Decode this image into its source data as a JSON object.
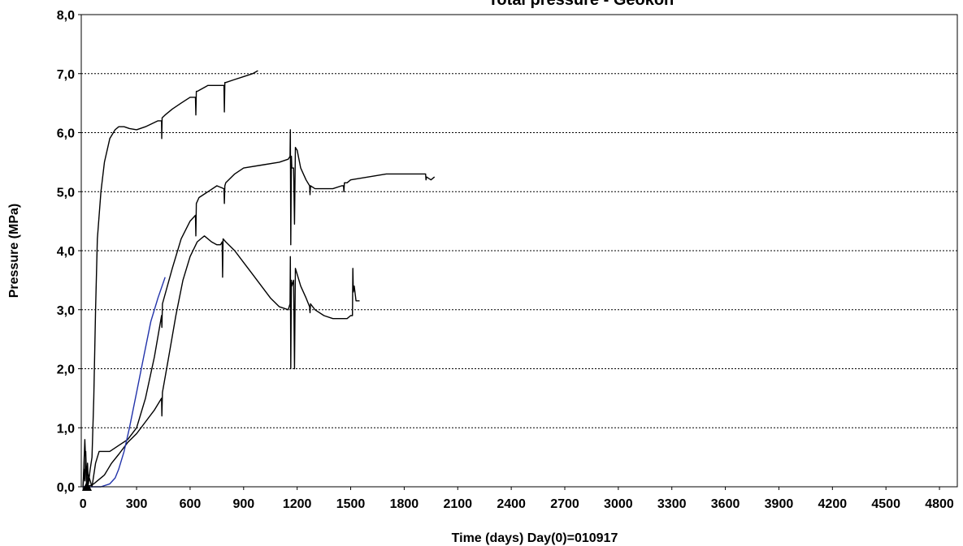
{
  "chart_data": {
    "type": "line",
    "title": "Total pressure - Geokon",
    "xlabel": "Time  (days)  Day(0)=010917",
    "ylabel": "Pressure (MPa)",
    "xlim": [
      -10,
      4900
    ],
    "ylim": [
      0,
      8
    ],
    "xticks": [
      0,
      300,
      600,
      900,
      1200,
      1500,
      1800,
      2100,
      2400,
      2700,
      3000,
      3300,
      3600,
      3900,
      4200,
      4500,
      4800
    ],
    "yticks": [
      0,
      1,
      2,
      3,
      4,
      5,
      6,
      7,
      8
    ],
    "ytick_labels": [
      "0,0",
      "1,0",
      "2,0",
      "3,0",
      "4,0",
      "5,0",
      "6,0",
      "7,0",
      "8,0"
    ],
    "grid": "horizontal dashed",
    "colors": {
      "axis": "#000000",
      "grid": "#000000",
      "series_black": "#000000",
      "series_blue": "#2233aa"
    },
    "series": [
      {
        "color": "#000000",
        "x": [
          0,
          5,
          10,
          15,
          20,
          25,
          30,
          40,
          50,
          60,
          70,
          80,
          100,
          120,
          150,
          180,
          200,
          230,
          260,
          300,
          350,
          420,
          440,
          441,
          443,
          460,
          500,
          550,
          600,
          630,
          632,
          635,
          640,
          700,
          750,
          790,
          792,
          795,
          800,
          850,
          900,
          950,
          980
        ],
        "y": [
          0.0,
          0.3,
          0.1,
          0.6,
          0.1,
          0.4,
          0.05,
          0.3,
          0.5,
          1.5,
          3.0,
          4.2,
          5.0,
          5.5,
          5.9,
          6.05,
          6.1,
          6.1,
          6.07,
          6.05,
          6.1,
          6.2,
          6.2,
          5.9,
          6.25,
          6.3,
          6.4,
          6.5,
          6.6,
          6.6,
          6.3,
          6.7,
          6.7,
          6.8,
          6.8,
          6.8,
          6.35,
          6.85,
          6.85,
          6.9,
          6.95,
          7.0,
          7.05
        ]
      },
      {
        "color": "#000000",
        "x": [
          0,
          10,
          20,
          30,
          50,
          60,
          70,
          80,
          90,
          100,
          120,
          150,
          200,
          250,
          300,
          350,
          400,
          440,
          442,
          445,
          500,
          550,
          600,
          630,
          632,
          635,
          650,
          700,
          750,
          790,
          792,
          795,
          800,
          850,
          900,
          1000,
          1100,
          1150,
          1160,
          1162,
          1164,
          1168,
          1170,
          1180,
          1185,
          1190,
          1200,
          1220,
          1250,
          1270,
          1272,
          1275,
          1300,
          1400,
          1450,
          1460,
          1462,
          1465,
          1480,
          1500,
          1600,
          1700,
          1800,
          1900,
          1920,
          1922,
          1925,
          1950,
          1970
        ],
        "y": [
          0.0,
          0.8,
          0.0,
          0.2,
          0.0,
          0.2,
          0.4,
          0.5,
          0.6,
          0.6,
          0.6,
          0.6,
          0.7,
          0.8,
          1.0,
          1.5,
          2.2,
          2.9,
          2.7,
          3.1,
          3.7,
          4.2,
          4.5,
          4.6,
          4.25,
          4.8,
          4.9,
          5.0,
          5.1,
          5.05,
          4.8,
          5.1,
          5.15,
          5.3,
          5.4,
          5.45,
          5.5,
          5.55,
          5.6,
          6.05,
          4.1,
          5.6,
          5.4,
          5.4,
          4.45,
          5.75,
          5.7,
          5.4,
          5.2,
          5.1,
          4.95,
          5.1,
          5.05,
          5.05,
          5.1,
          5.1,
          5.0,
          5.15,
          5.15,
          5.2,
          5.25,
          5.3,
          5.3,
          5.3,
          5.3,
          5.2,
          5.25,
          5.2,
          5.25
        ]
      },
      {
        "color": "#000000",
        "x": [
          0,
          20,
          40,
          60,
          80,
          100,
          120,
          140,
          160,
          200,
          250,
          300,
          350,
          400,
          420,
          440,
          442,
          445,
          480,
          520,
          560,
          600,
          640,
          660,
          680,
          700,
          720,
          750,
          770,
          780,
          782,
          785,
          800,
          850,
          900,
          950,
          1000,
          1050,
          1100,
          1150,
          1160,
          1162,
          1164,
          1168,
          1170,
          1180,
          1185,
          1190,
          1200,
          1220,
          1250,
          1270,
          1272,
          1275,
          1300,
          1350,
          1400,
          1450,
          1480,
          1500,
          1510,
          1512,
          1515,
          1520,
          1530,
          1550
        ],
        "y": [
          0.0,
          0.0,
          0.02,
          0.05,
          0.1,
          0.15,
          0.2,
          0.3,
          0.4,
          0.55,
          0.75,
          0.9,
          1.1,
          1.3,
          1.4,
          1.5,
          1.2,
          1.6,
          2.2,
          2.9,
          3.5,
          3.9,
          4.15,
          4.2,
          4.25,
          4.2,
          4.15,
          4.1,
          4.1,
          4.15,
          3.55,
          4.2,
          4.15,
          4.0,
          3.8,
          3.6,
          3.4,
          3.2,
          3.05,
          3.0,
          3.1,
          3.9,
          2.0,
          3.5,
          3.4,
          3.5,
          2.0,
          3.7,
          3.6,
          3.4,
          3.2,
          3.05,
          2.95,
          3.1,
          3.0,
          2.9,
          2.85,
          2.85,
          2.85,
          2.9,
          2.9,
          3.7,
          3.3,
          3.4,
          3.15,
          3.15
        ]
      },
      {
        "color": "#2233aa",
        "x": [
          0,
          100,
          150,
          180,
          200,
          230,
          260,
          300,
          340,
          380,
          420,
          460
        ],
        "y": [
          0.0,
          0.0,
          0.05,
          0.15,
          0.3,
          0.6,
          1.0,
          1.6,
          2.2,
          2.8,
          3.2,
          3.55
        ]
      }
    ]
  }
}
